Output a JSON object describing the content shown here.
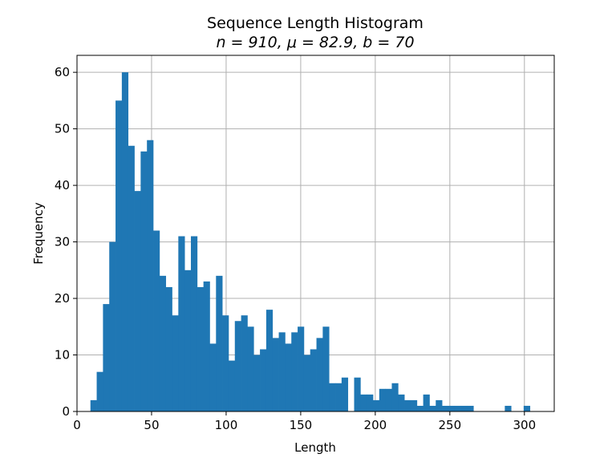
{
  "chart_data": {
    "type": "bar",
    "title": "Sequence Length Histogram",
    "subtitle": "n = 910, μ = 82.9, b = 70",
    "xlabel": "Length",
    "ylabel": "Frequency",
    "xlim": [
      0,
      320
    ],
    "ylim": [
      0,
      63
    ],
    "xticks": [
      0,
      50,
      100,
      150,
      200,
      250,
      300
    ],
    "yticks": [
      0,
      10,
      20,
      30,
      40,
      50,
      60
    ],
    "grid": true,
    "bar_color": "#1f77b4",
    "bin_start": 9,
    "bin_width": 4.21,
    "bin_counts": [
      2,
      7,
      19,
      30,
      55,
      60,
      47,
      39,
      46,
      48,
      32,
      24,
      22,
      17,
      31,
      25,
      31,
      22,
      23,
      12,
      24,
      17,
      9,
      16,
      17,
      15,
      10,
      11,
      18,
      13,
      14,
      12,
      14,
      15,
      10,
      11,
      13,
      15,
      5,
      5,
      6,
      0,
      6,
      3,
      3,
      2,
      4,
      4,
      5,
      3,
      2,
      2,
      1,
      3,
      1,
      2,
      1,
      1,
      1,
      1,
      1,
      0,
      0,
      0,
      0,
      0,
      1,
      0,
      0,
      1
    ]
  }
}
